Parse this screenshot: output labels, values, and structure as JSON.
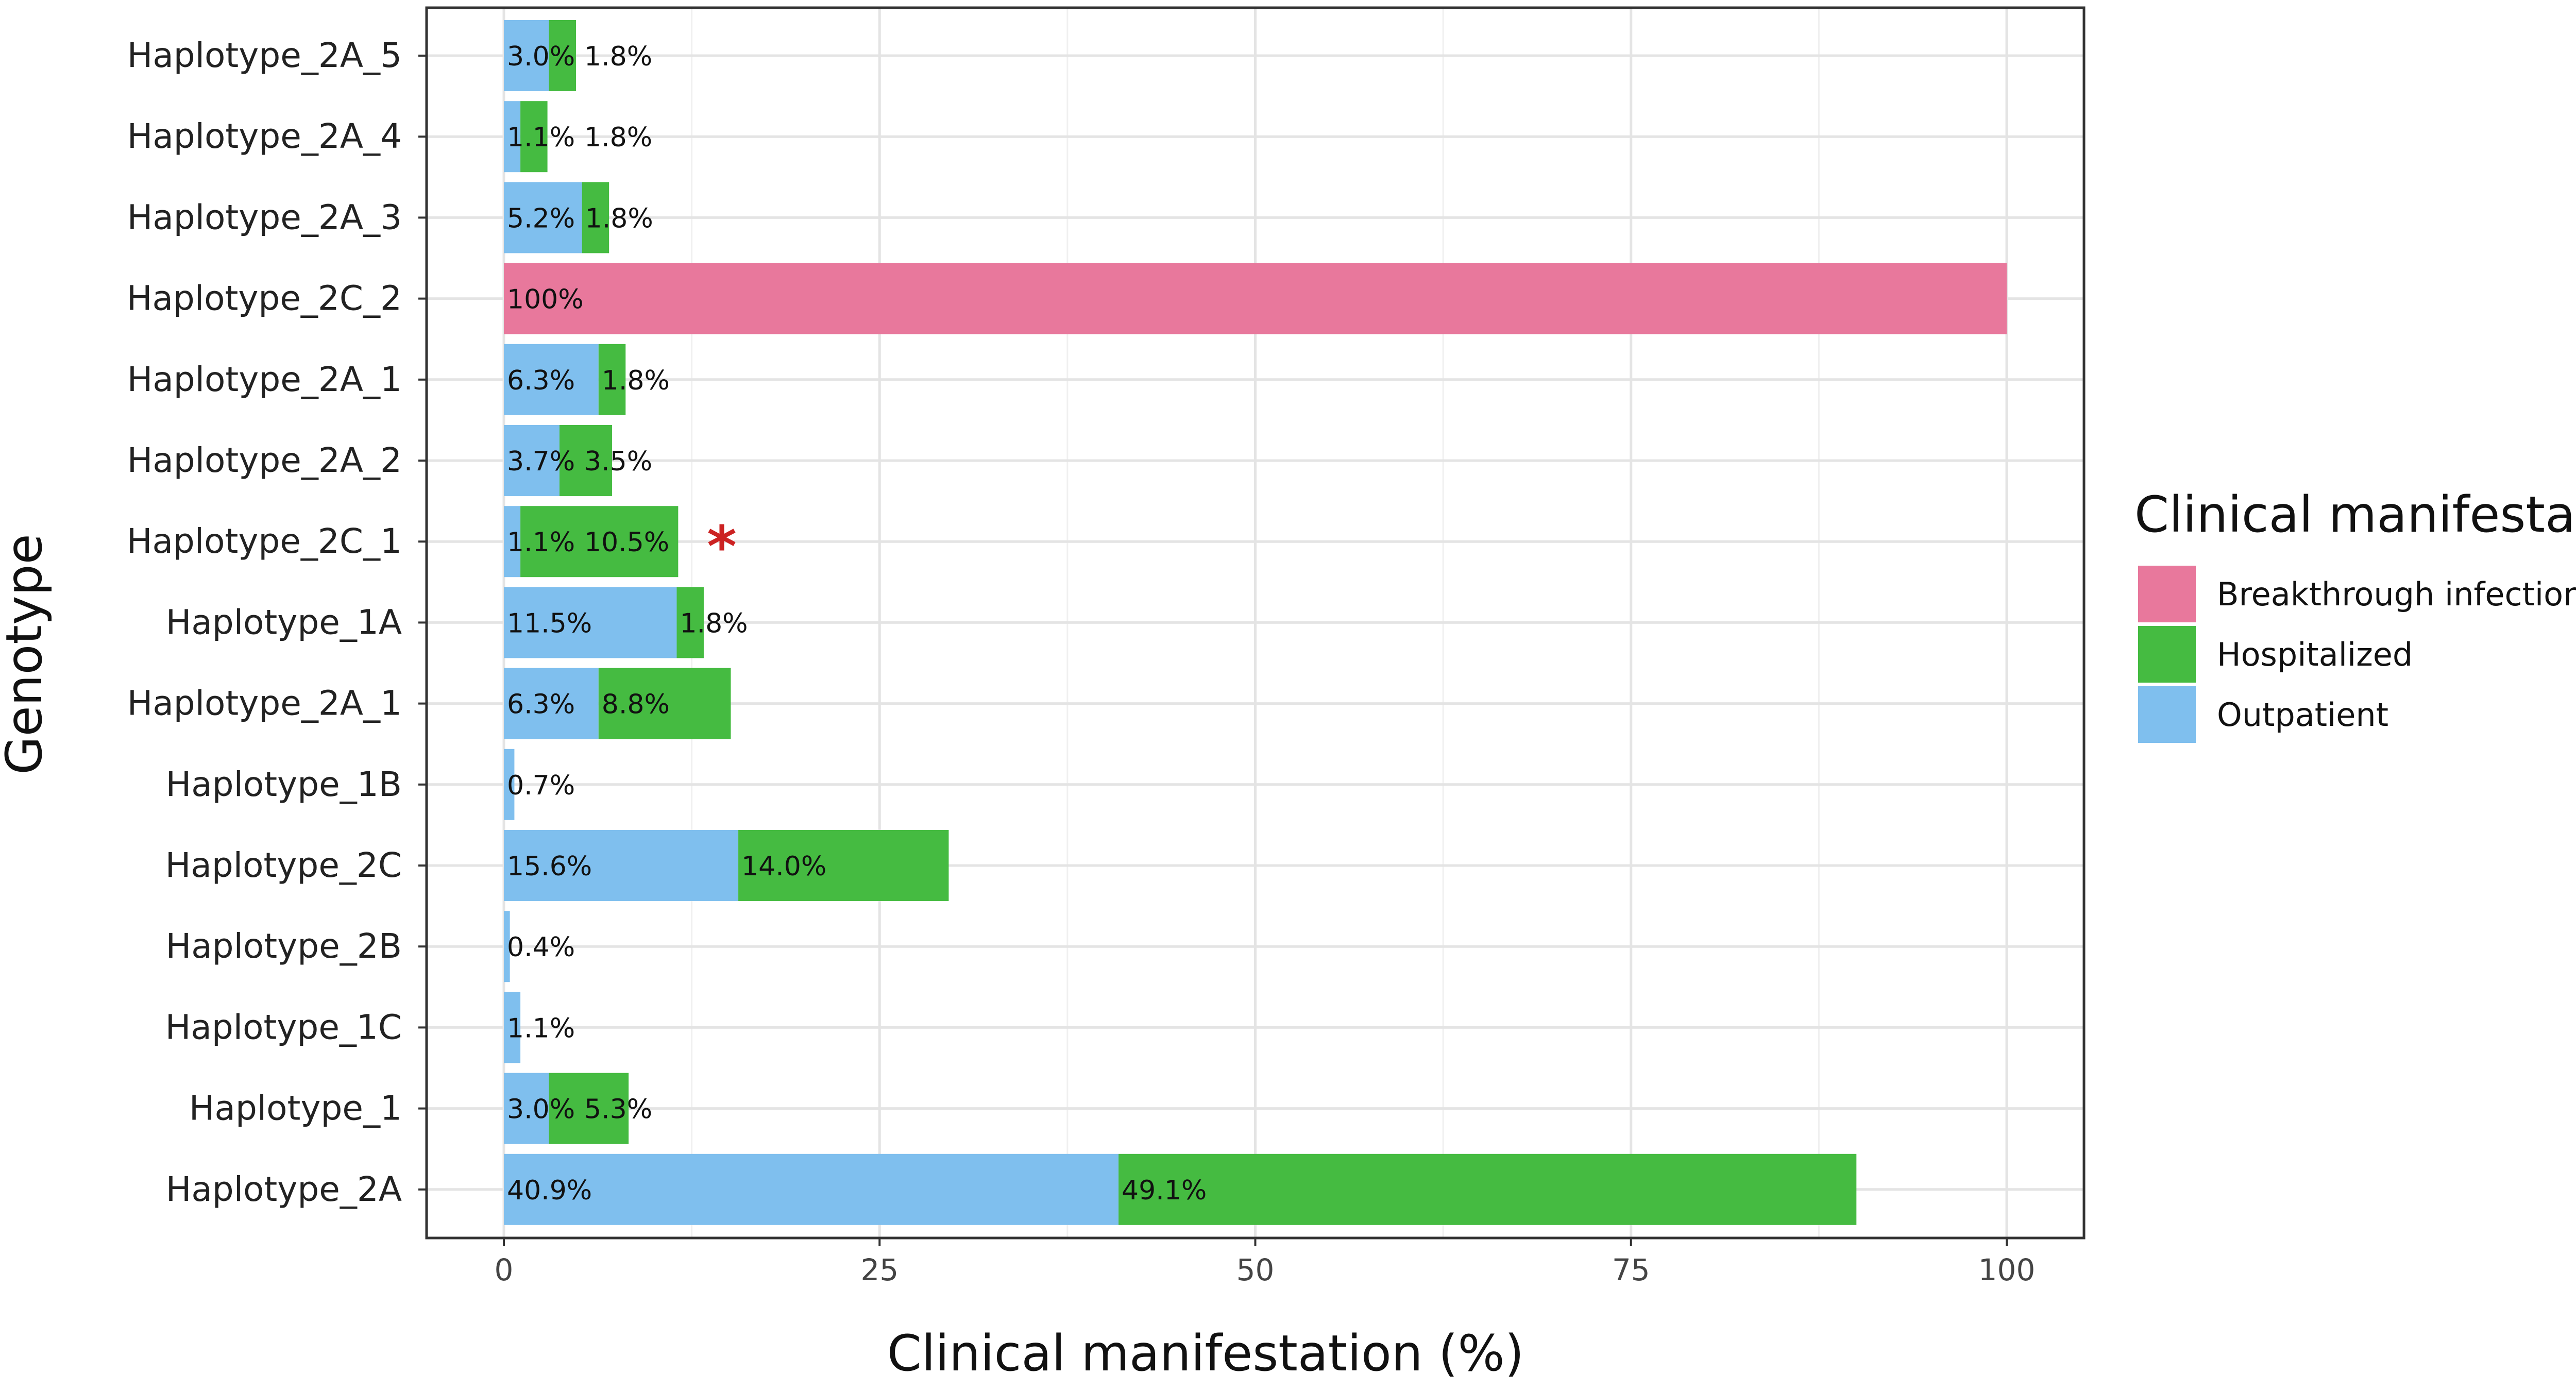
{
  "chart_data": {
    "type": "bar",
    "orientation": "horizontal",
    "stacked": true,
    "xlabel": "Clinical manifestation (%)",
    "ylabel": "Genotype",
    "xlim": [
      0,
      100
    ],
    "x_ticks": [
      "0",
      "25",
      "50",
      "75",
      "100"
    ],
    "grid": true,
    "categories": [
      "Haplotype_2A_5",
      "Haplotype_2A_4",
      "Haplotype_2A_3",
      "Haplotype_2C_2",
      "Haplotype_2A_1",
      "Haplotype_2A_2",
      "Haplotype_2C_1",
      "Haplotype_1A",
      "Haplotype_2A_1",
      "Haplotype_1B",
      "Haplotype_2C",
      "Haplotype_2B",
      "Haplotype_1C",
      "Haplotype_1",
      "Haplotype_2A"
    ],
    "series": [
      {
        "name": "Outpatient",
        "color": "#7fbfee",
        "values": [
          3.0,
          1.1,
          5.2,
          null,
          6.3,
          3.7,
          1.1,
          11.5,
          6.3,
          0.7,
          15.6,
          0.4,
          1.1,
          3.0,
          40.9
        ],
        "labels": [
          "3.0%",
          "1.1%",
          "5.2%",
          "",
          "6.3%",
          "3.7%",
          "1.1%",
          "11.5%",
          "6.3%",
          "0.7%",
          "15.6%",
          "0.4%",
          "1.1%",
          "3.0%",
          "40.9%"
        ]
      },
      {
        "name": "Hospitalized",
        "color": "#45bb41",
        "values": [
          1.8,
          1.8,
          1.8,
          null,
          1.8,
          3.5,
          10.5,
          1.8,
          8.8,
          null,
          14.0,
          null,
          null,
          5.3,
          49.1
        ],
        "labels": [
          "1.8%",
          "1.8%",
          "1.8%",
          "",
          "1.8%",
          "3.5%",
          "10.5%",
          "1.8%",
          "8.8%",
          "",
          "14.0%",
          "",
          "",
          "5.3%",
          "49.1%"
        ]
      },
      {
        "name": "Breakthrough infection",
        "color": "#e8789c",
        "values": [
          null,
          null,
          null,
          100,
          null,
          null,
          null,
          null,
          null,
          null,
          null,
          null,
          null,
          null,
          null
        ],
        "labels": [
          "",
          "",
          "",
          "100%",
          "",
          "",
          "",
          "",
          "",
          "",
          "",
          "",
          "",
          "",
          ""
        ]
      }
    ],
    "annotations": [
      {
        "text": "*",
        "category_index": 6,
        "x": 14.5,
        "color": "#cc2222"
      }
    ],
    "legend": {
      "title": "Clinical manifestation:",
      "position": "right",
      "order": [
        "Breakthrough infection",
        "Hospitalized",
        "Outpatient"
      ]
    }
  }
}
